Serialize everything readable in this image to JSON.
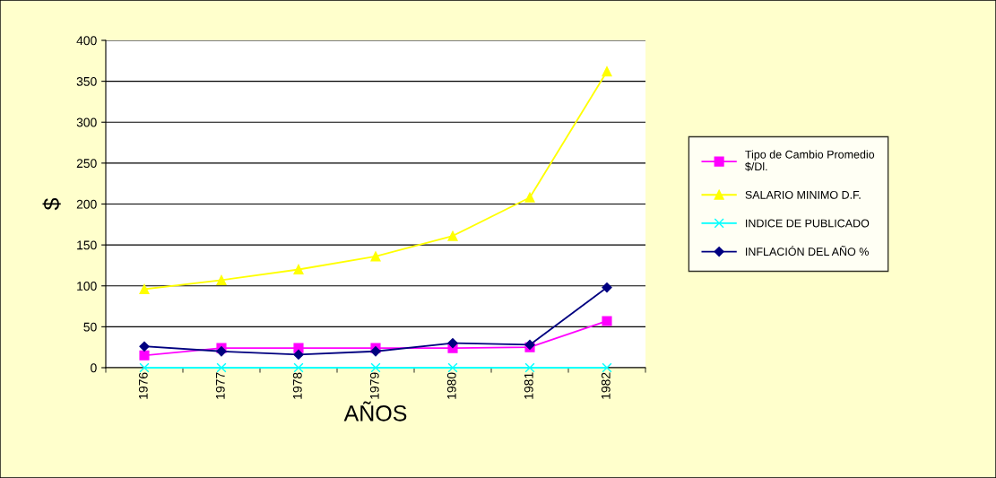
{
  "chart_data": {
    "type": "line",
    "xlabel": "AÑOS",
    "ylabel": "$",
    "categories": [
      "1976",
      "1977",
      "1978",
      "1979",
      "1980",
      "1981",
      "1982"
    ],
    "series": [
      {
        "name": "Tipo de Cambio Promedio\n$/Dl.",
        "color": "#ff00ff",
        "marker": "square",
        "values": [
          15,
          24,
          24,
          24,
          24,
          25,
          57
        ]
      },
      {
        "name": "SALARIO MINIMO D.F.",
        "color": "#ffff00",
        "marker": "triangle",
        "values": [
          96,
          107,
          120,
          136,
          161,
          208,
          362
        ]
      },
      {
        "name": "INDICE DE PUBLICADO",
        "color": "#00ffff",
        "marker": "cross",
        "values": [
          0,
          0,
          0,
          0,
          0,
          0,
          0
        ]
      },
      {
        "name": "INFLACIÓN DEL AÑO %",
        "color": "#000080",
        "marker": "diamond",
        "values": [
          26,
          20,
          16,
          20,
          30,
          28,
          98
        ]
      }
    ],
    "ylim": [
      0,
      400
    ],
    "yticks": [
      0,
      50,
      100,
      150,
      200,
      250,
      300,
      350,
      400
    ],
    "grid": "y",
    "legend": "right"
  }
}
